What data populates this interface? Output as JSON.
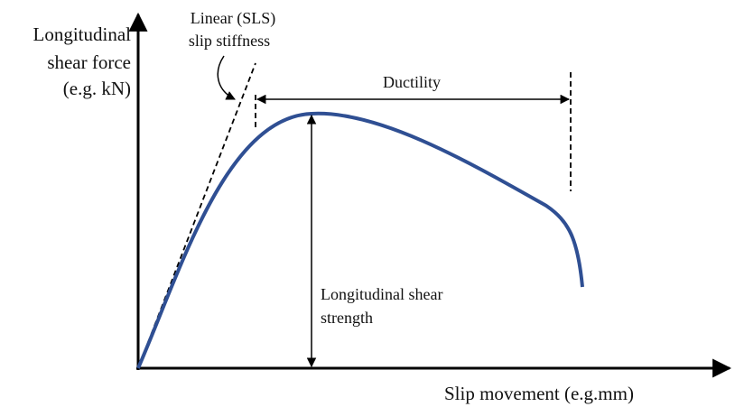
{
  "y_axis_label": [
    "Longitudinal",
    "shear force",
    "(e.g. kN)"
  ],
  "x_axis_label": "Slip movement (e.g.mm)",
  "stiffness_label": [
    "Linear (SLS)",
    "slip stiffness"
  ],
  "ductility_label": "Ductility",
  "strength_label": [
    "Longitudinal shear",
    "strength"
  ]
}
